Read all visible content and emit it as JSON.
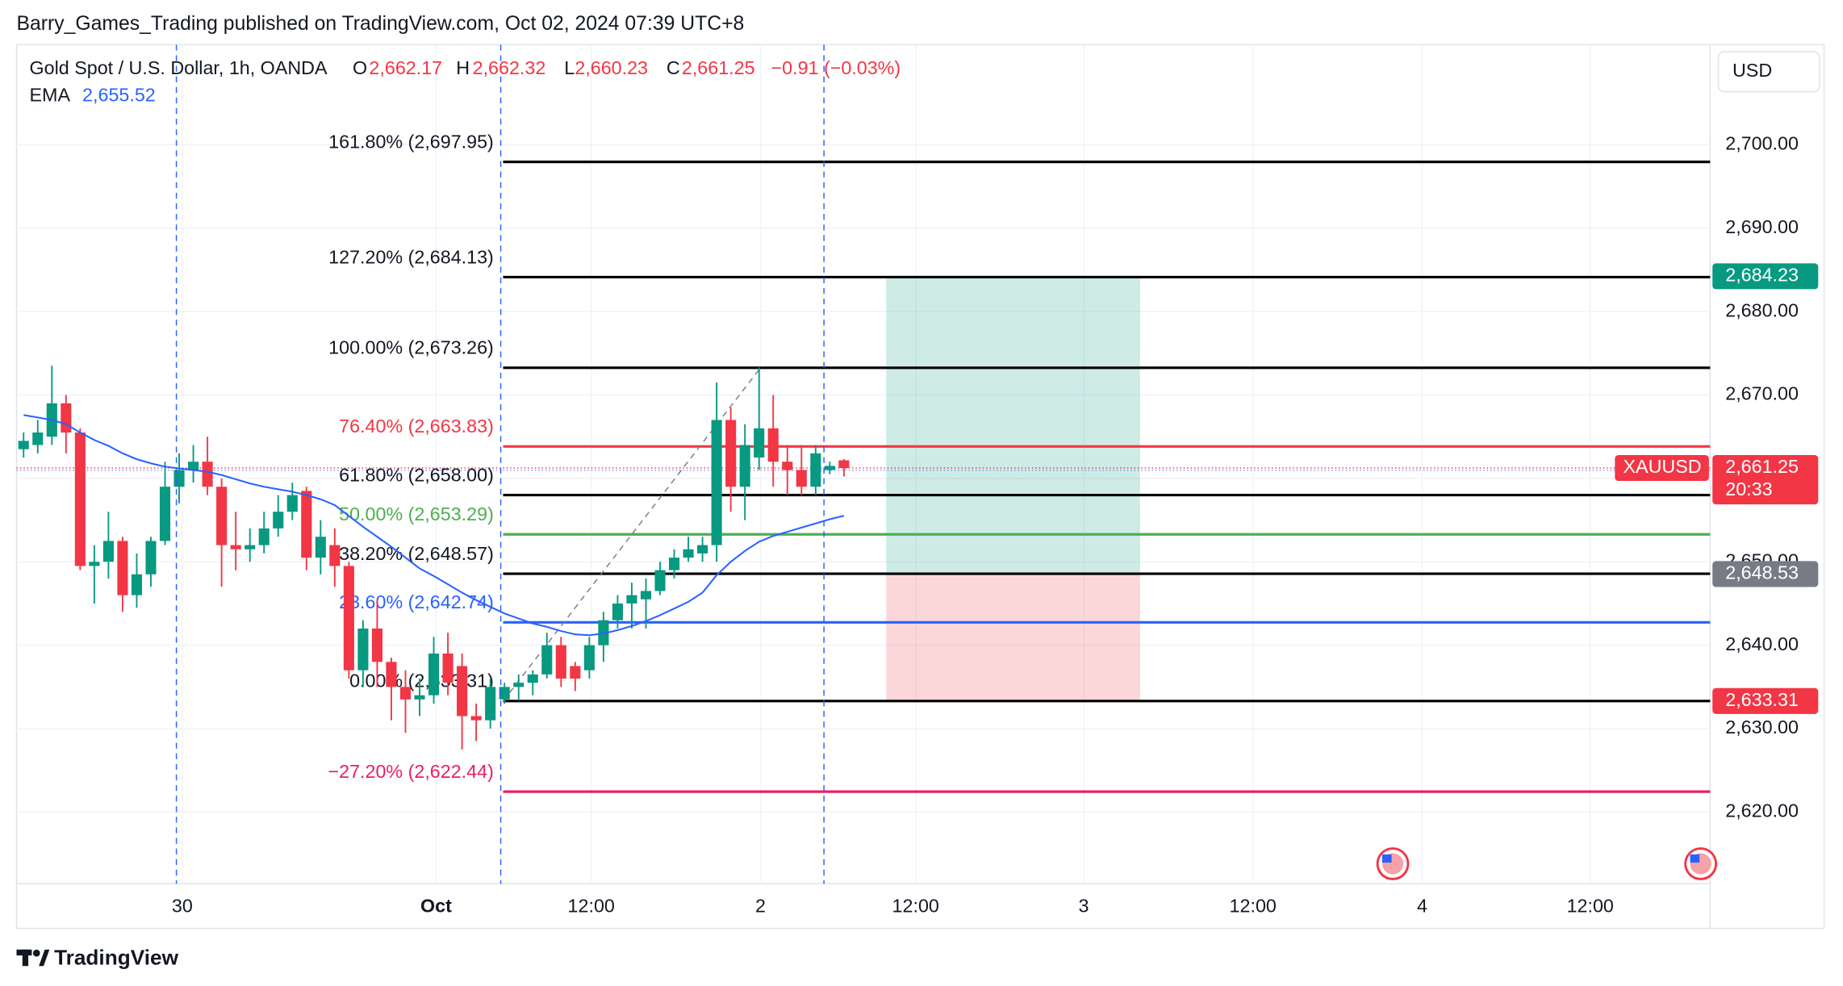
{
  "header": {
    "text": "Barry_Games_Trading published on TradingView.com, Oct 02, 2024 07:39 UTC+8"
  },
  "footer": {
    "brand": "TradingView"
  },
  "chart_data": {
    "type": "candlestick",
    "legend": {
      "symbol": "Gold Spot / U.S. Dollar, 1h, OANDA",
      "o_key": "O",
      "o": "2,662.17",
      "h_key": "H",
      "h": "2,662.32",
      "l_key": "L",
      "l": "2,660.23",
      "c_key": "C",
      "c": "2,661.25",
      "change": "−0.91 (−0.03%)",
      "ema_key": "EMA",
      "ema": "2,655.52"
    },
    "currency": "USD",
    "up_color": "#089981",
    "down_color": "#f23645",
    "open": [
      2663.5,
      2664,
      2665,
      2669,
      2665.5,
      2649.5,
      2650,
      2652.5,
      2646,
      2648.5,
      2652.5,
      2659,
      2661,
      2662,
      2659,
      2652,
      2651.5,
      2652,
      2654,
      2656,
      2658.5,
      2650.5,
      2652,
      2649.5,
      2637,
      2642,
      2638,
      2635,
      2633.5,
      2634,
      2639,
      2637.5,
      2631.5,
      2631,
      2633.5,
      2635,
      2635.5,
      2636.5,
      2640,
      2637.5,
      2637,
      2640,
      2643,
      2645,
      2645.5,
      2646.5,
      2649,
      2650.5,
      2651,
      2652,
      2667,
      2659,
      2662.5,
      2666,
      2662,
      2661,
      2659,
      2661,
      2662.17
    ],
    "high": [
      2665.5,
      2667,
      2673.5,
      2670,
      2666,
      2652,
      2656,
      2653,
      2651,
      2653,
      2662,
      2663,
      2664,
      2665,
      2660,
      2656,
      2654,
      2656,
      2658,
      2659.5,
      2659,
      2655,
      2654,
      2650,
      2643,
      2645.5,
      2638.5,
      2637,
      2636,
      2641,
      2641.5,
      2639,
      2633,
      2636,
      2635.5,
      2636.5,
      2637,
      2641.5,
      2641,
      2638,
      2641,
      2644,
      2646,
      2647.5,
      2648,
      2650,
      2651.5,
      2653,
      2653,
      2671.5,
      2668.5,
      2666.5,
      2673.3,
      2670,
      2664,
      2664,
      2664,
      2662,
      2662.32
    ],
    "low": [
      2662.5,
      2663,
      2664,
      2663,
      2649,
      2645,
      2648,
      2644,
      2644.5,
      2647,
      2652,
      2657,
      2659.5,
      2658,
      2647,
      2649,
      2650,
      2651,
      2653,
      2655,
      2649,
      2648.5,
      2647,
      2636,
      2635,
      2635,
      2631,
      2629.5,
      2631.5,
      2633,
      2634,
      2627.5,
      2628.5,
      2630,
      2633,
      2633.5,
      2634,
      2636,
      2635,
      2634.5,
      2636,
      2638,
      2642,
      2642,
      2642,
      2646,
      2648,
      2650,
      2650,
      2650,
      2656,
      2655,
      2661,
      2659,
      2658,
      2658,
      2658,
      2660.5,
      2660.23
    ],
    "close": [
      2664.5,
      2665.5,
      2669,
      2665.5,
      2649.5,
      2650,
      2652.5,
      2646,
      2648.5,
      2652.5,
      2659,
      2661,
      2662,
      2659,
      2652,
      2651.5,
      2652,
      2654,
      2656,
      2658,
      2650.5,
      2653,
      2649.5,
      2637,
      2642,
      2638,
      2635,
      2633.5,
      2634,
      2639,
      2635.5,
      2631.5,
      2631,
      2635,
      2635,
      2635.5,
      2636.5,
      2640,
      2636,
      2636,
      2640,
      2643,
      2645,
      2646,
      2646.5,
      2649,
      2650.5,
      2651.5,
      2652,
      2667,
      2659,
      2664,
      2666,
      2662,
      2661,
      2659,
      2663,
      2661.5,
      2661.25
    ],
    "ema": {
      "name": "EMA",
      "color": "#2962ff",
      "values": [
        2667.6,
        2667.3,
        2667,
        2666.5,
        2665.5,
        2664.6,
        2663.9,
        2663,
        2662.3,
        2661.8,
        2661.4,
        2661.2,
        2661,
        2660.8,
        2660.4,
        2659.9,
        2659.4,
        2659,
        2658.7,
        2658.4,
        2658,
        2657.5,
        2656.8,
        2655.5,
        2654.2,
        2653,
        2651.8,
        2650.5,
        2649.2,
        2648.3,
        2647.3,
        2646.3,
        2645.4,
        2644.6,
        2643.8,
        2643.2,
        2642.6,
        2642.2,
        2641.7,
        2641.3,
        2641.2,
        2641.4,
        2641.8,
        2642.3,
        2642.9,
        2643.6,
        2644.4,
        2645.2,
        2646.3,
        2648.4,
        2650,
        2651.3,
        2652.4,
        2653.1,
        2653.6,
        2654.1,
        2654.6,
        2655.1,
        2655.52
      ]
    },
    "ylim": [
      2611.4,
      2712
    ],
    "yticks": [
      {
        "value": 2620,
        "label": "2,620.00"
      },
      {
        "value": 2630,
        "label": "2,630.00"
      },
      {
        "value": 2640,
        "label": "2,640.00"
      },
      {
        "value": 2650,
        "label": "2,650.00"
      },
      {
        "value": 2660,
        "label": "2,660.00"
      },
      {
        "value": 2670,
        "label": "2,670.00"
      },
      {
        "value": 2680,
        "label": "2,680.00"
      },
      {
        "value": 2690,
        "label": "2,690.00"
      },
      {
        "value": 2700,
        "label": "2,700.00"
      }
    ],
    "xtick_labels": [
      "30",
      "Oct",
      "12:00",
      "2",
      "12:00",
      "3",
      "12:00",
      "4",
      "12:00"
    ],
    "grid": true,
    "fib_levels": [
      {
        "label": "161.80% (2,697.95)",
        "price": 2697.95,
        "color": "#000000"
      },
      {
        "label": "127.20% (2,684.13)",
        "price": 2684.13,
        "color": "#000000"
      },
      {
        "label": "100.00% (2,673.26)",
        "price": 2673.26,
        "color": "#000000"
      },
      {
        "label": "76.40% (2,663.83)",
        "price": 2663.83,
        "color": "#f23645"
      },
      {
        "label": "61.80% (2,658.00)",
        "price": 2658.0,
        "color": "#000000"
      },
      {
        "label": "50.00% (2,653.29)",
        "price": 2653.29,
        "color": "#4caf50"
      },
      {
        "label": "38.20% (2,648.57)",
        "price": 2648.57,
        "color": "#000000"
      },
      {
        "label": "23.60% (2,642.74)",
        "price": 2642.74,
        "color": "#2962ff"
      },
      {
        "label": "0.00% (2,633.31)",
        "price": 2633.31,
        "color": "#000000"
      },
      {
        "label": "−27.20% (2,622.44)",
        "price": 2622.44,
        "color": "#e91e63"
      }
    ],
    "position": {
      "target": 2684.23,
      "target_label": "2,684.23",
      "entry": 2648.53,
      "entry_label": "2,648.53",
      "stop": 2633.31,
      "stop_label": "2,633.31"
    },
    "last": {
      "symbol": "XAUUSD",
      "price_label": "2,661.25",
      "countdown": "20:33"
    }
  }
}
